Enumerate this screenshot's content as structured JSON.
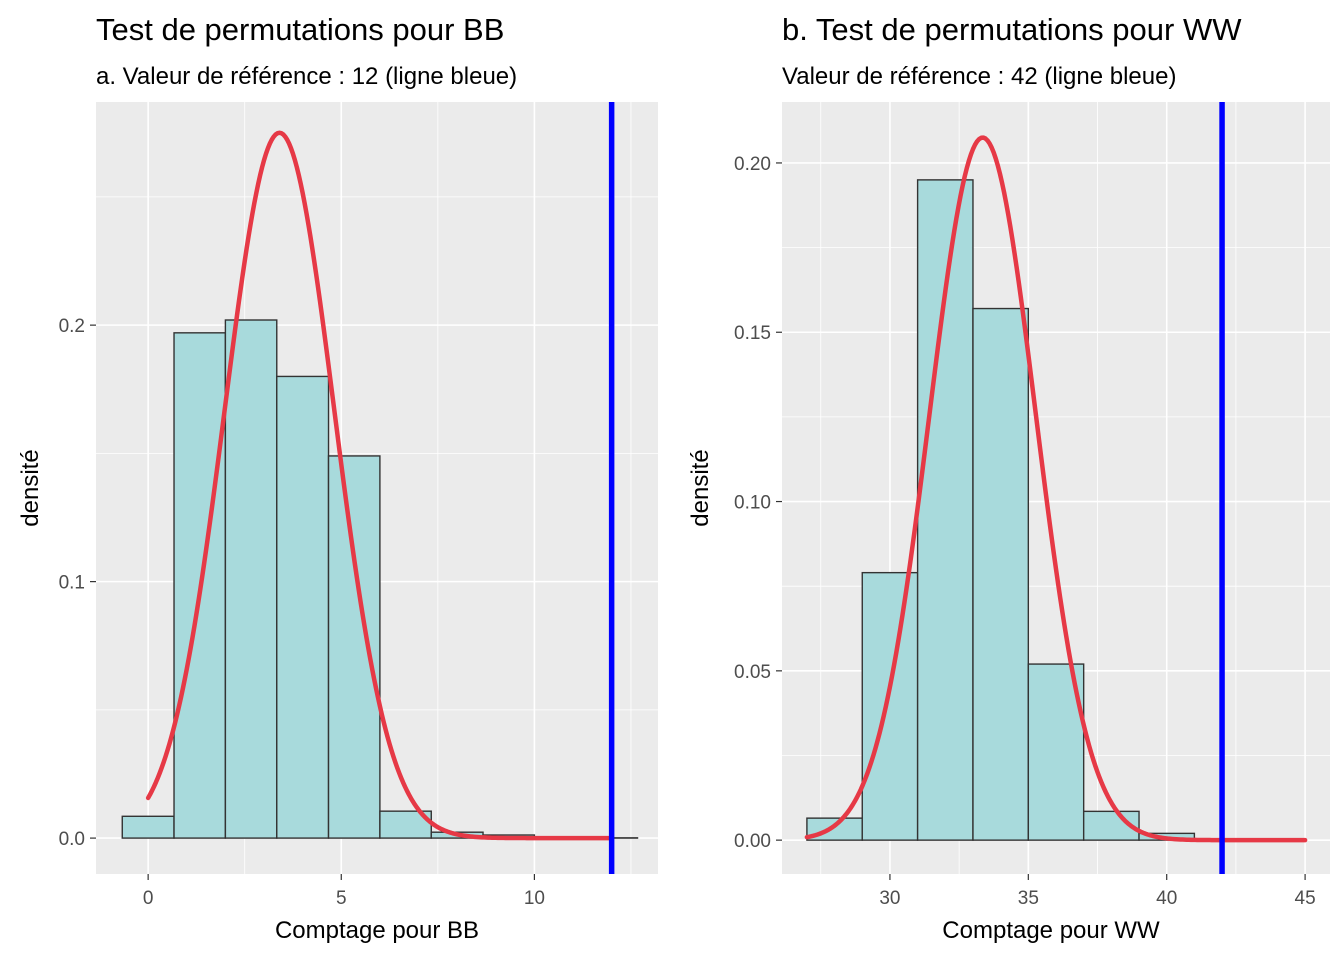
{
  "chart_data": [
    {
      "type": "bar",
      "title": "Test de permutations pour BB",
      "subtitle": "a. Valeur de référence : 12 (ligne bleue)",
      "xlabel": "Comptage pour BB",
      "ylabel": "densité",
      "xlim": [
        -1.35,
        13.2
      ],
      "ylim": [
        -0.014,
        0.287
      ],
      "xticks": [
        0,
        5,
        10
      ],
      "xtick_labels": [
        "0",
        "5",
        "10"
      ],
      "yticks": [
        0.0,
        0.1,
        0.2
      ],
      "ytick_labels": [
        "0.0",
        "0.1",
        "0.2"
      ],
      "grid": true,
      "bar_fill": "#a8dadc",
      "bar_edge": "#333333",
      "bins": [
        {
          "x0": -0.67,
          "x1": 0.67,
          "value": 0.0085
        },
        {
          "x0": 0.67,
          "x1": 2.0,
          "value": 0.197
        },
        {
          "x0": 2.0,
          "x1": 3.33,
          "value": 0.202
        },
        {
          "x0": 3.33,
          "x1": 4.67,
          "value": 0.18
        },
        {
          "x0": 4.67,
          "x1": 6.0,
          "value": 0.149
        },
        {
          "x0": 6.0,
          "x1": 7.33,
          "value": 0.0105
        },
        {
          "x0": 7.33,
          "x1": 8.67,
          "value": 0.0023
        },
        {
          "x0": 8.67,
          "x1": 10.0,
          "value": 0.0012
        },
        {
          "x0": 10.0,
          "x1": 11.33,
          "value": 0.0003
        },
        {
          "x0": 11.33,
          "x1": 12.67,
          "value": 0.0001
        }
      ],
      "density_curve": {
        "color": "#e63946",
        "mean": 3.4,
        "sd": 1.42,
        "peak": 0.275,
        "x_start": 0,
        "x_end": 12
      },
      "reference_line": {
        "x": 12,
        "color": "#0000ff"
      }
    },
    {
      "type": "bar",
      "title": "b. Test de permutations pour WW",
      "subtitle": "Valeur de référence : 42 (ligne bleue)",
      "xlabel": "Comptage pour WW",
      "ylabel": "densité",
      "xlim": [
        26.1,
        45.9
      ],
      "ylim": [
        -0.01,
        0.218
      ],
      "xticks": [
        30,
        35,
        40,
        45
      ],
      "xtick_labels": [
        "30",
        "35",
        "40",
        "45"
      ],
      "yticks": [
        0.0,
        0.05,
        0.1,
        0.15,
        0.2
      ],
      "ytick_labels": [
        "0.00",
        "0.05",
        "0.10",
        "0.15",
        "0.20"
      ],
      "grid": true,
      "bar_fill": "#a8dadc",
      "bar_edge": "#333333",
      "bins": [
        {
          "x0": 27.0,
          "x1": 29.0,
          "value": 0.0065
        },
        {
          "x0": 29.0,
          "x1": 31.0,
          "value": 0.079
        },
        {
          "x0": 31.0,
          "x1": 33.0,
          "value": 0.195
        },
        {
          "x0": 33.0,
          "x1": 35.0,
          "value": 0.157
        },
        {
          "x0": 35.0,
          "x1": 37.0,
          "value": 0.052
        },
        {
          "x0": 37.0,
          "x1": 39.0,
          "value": 0.0085
        },
        {
          "x0": 39.0,
          "x1": 41.0,
          "value": 0.002
        },
        {
          "x0": 41.0,
          "x1": 43.0,
          "value": 0.0004
        }
      ],
      "density_curve": {
        "color": "#e63946",
        "mean": 33.35,
        "sd": 1.92,
        "peak": 0.2075,
        "x_start": 27,
        "x_end": 45
      },
      "reference_line": {
        "x": 42,
        "color": "#0000ff"
      }
    }
  ]
}
